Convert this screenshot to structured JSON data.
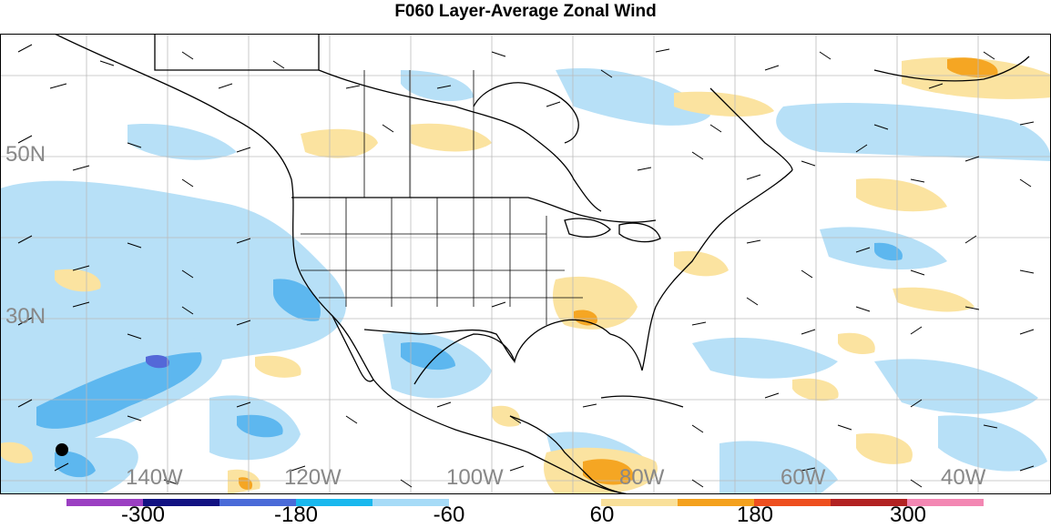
{
  "title": "F060 Layer-Average Zonal Wind",
  "lat_labels": [
    "50N",
    "30N"
  ],
  "lon_labels": [
    "140W",
    "120W",
    "100W",
    "80W",
    "60W",
    "40W"
  ],
  "colorbar": {
    "labels": [
      "-300",
      "-180",
      "-60",
      "60",
      "180",
      "300"
    ],
    "colors": [
      "#9b3fc2",
      "#121282",
      "#4a6bd8",
      "#19b8ee",
      "#a7dbf7",
      "#ffffff",
      "#ffffff",
      "#f9e09a",
      "#f4a11e",
      "#ee4f1f",
      "#b22222",
      "#f387b3"
    ]
  },
  "colors": {
    "light_blue": "#b7e0f7",
    "mid_blue": "#5db7ef",
    "dark_blue": "#5468d8",
    "light_yellow": "#fbe3a0",
    "orange": "#f5a623",
    "coast": "#000000",
    "grid": "#bbbbbb"
  }
}
